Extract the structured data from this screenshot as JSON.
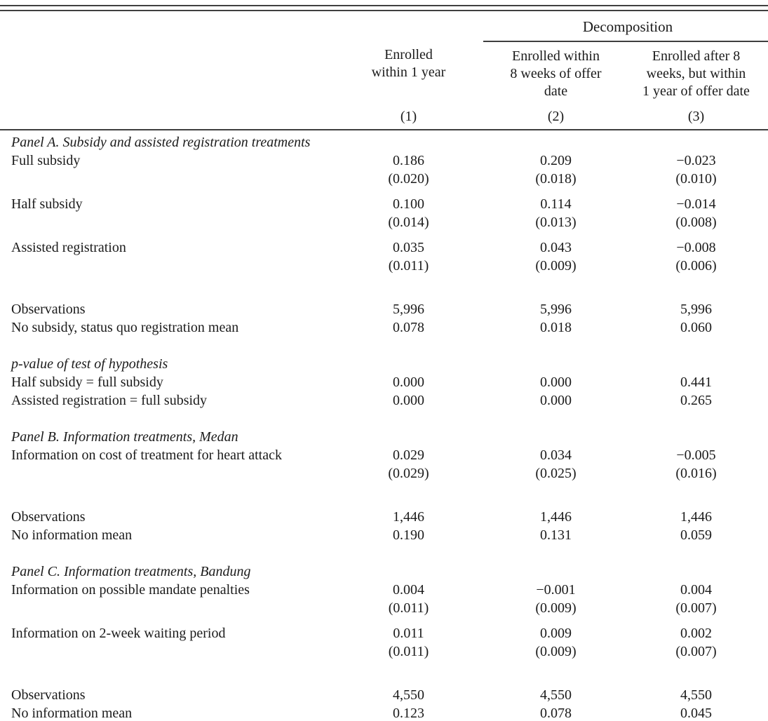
{
  "page": {
    "background": "#ffffff",
    "text_color": "#1b1b1b",
    "rule_color": "#3f3f3f"
  },
  "header": {
    "decomposition": "Decomposition",
    "columns": [
      {
        "title": "Enrolled\nwithin 1 year",
        "number": "(1)"
      },
      {
        "title": "Enrolled within\n8 weeks of offer\ndate",
        "number": "(2)"
      },
      {
        "title": "Enrolled after 8\nweeks, but within\n1 year of offer date",
        "number": "(3)"
      }
    ]
  },
  "rows": [
    {
      "type": "panel",
      "label": "Panel A. Subsidy and assisted registration treatments"
    },
    {
      "type": "coef",
      "label": "Full subsidy",
      "values": [
        "0.186",
        "0.209",
        "−0.023"
      ],
      "ses": [
        "(0.020)",
        "(0.018)",
        "(0.010)"
      ]
    },
    {
      "type": "coef",
      "label": "Half subsidy",
      "values": [
        "0.100",
        "0.114",
        "−0.014"
      ],
      "ses": [
        "(0.014)",
        "(0.013)",
        "(0.008)"
      ]
    },
    {
      "type": "coef",
      "label": "Assisted registration",
      "values": [
        "0.035",
        "0.043",
        "−0.008"
      ],
      "ses": [
        "(0.011)",
        "(0.009)",
        "(0.006)"
      ]
    },
    {
      "type": "gap"
    },
    {
      "type": "stat",
      "label": "Observations",
      "values": [
        "5,996",
        "5,996",
        "5,996"
      ]
    },
    {
      "type": "stat",
      "label": "No subsidy, status quo registration mean",
      "values": [
        "0.078",
        "0.018",
        "0.060"
      ]
    },
    {
      "type": "gap"
    },
    {
      "type": "panel",
      "label": "p-value of test of hypothesis"
    },
    {
      "type": "stat",
      "label": "Half subsidy = full subsidy",
      "values": [
        "0.000",
        "0.000",
        "0.441"
      ]
    },
    {
      "type": "stat",
      "label": "Assisted registration = full subsidy",
      "values": [
        "0.000",
        "0.000",
        "0.265"
      ]
    },
    {
      "type": "gap"
    },
    {
      "type": "panel",
      "label": "Panel B. Information treatments, Medan"
    },
    {
      "type": "coef",
      "label": "Information on cost of treatment for heart attack",
      "values": [
        "0.029",
        "0.034",
        "−0.005"
      ],
      "ses": [
        "(0.029)",
        "(0.025)",
        "(0.016)"
      ]
    },
    {
      "type": "gap"
    },
    {
      "type": "stat",
      "label": "Observations",
      "values": [
        "1,446",
        "1,446",
        "1,446"
      ]
    },
    {
      "type": "stat",
      "label": "No information mean",
      "values": [
        "0.190",
        "0.131",
        "0.059"
      ]
    },
    {
      "type": "gap"
    },
    {
      "type": "panel",
      "label": "Panel C. Information treatments, Bandung"
    },
    {
      "type": "coef",
      "label": "Information on possible mandate penalties",
      "values": [
        "0.004",
        "−0.001",
        "0.004"
      ],
      "ses": [
        "(0.011)",
        "(0.009)",
        "(0.007)"
      ]
    },
    {
      "type": "coef",
      "label": "Information on 2-week waiting period",
      "values": [
        "0.011",
        "0.009",
        "0.002"
      ],
      "ses": [
        "(0.011)",
        "(0.009)",
        "(0.007)"
      ]
    },
    {
      "type": "gap"
    },
    {
      "type": "stat",
      "label": "Observations",
      "values": [
        "4,550",
        "4,550",
        "4,550"
      ]
    },
    {
      "type": "stat",
      "label": "No information mean",
      "values": [
        "0.123",
        "0.078",
        "0.045"
      ]
    }
  ]
}
